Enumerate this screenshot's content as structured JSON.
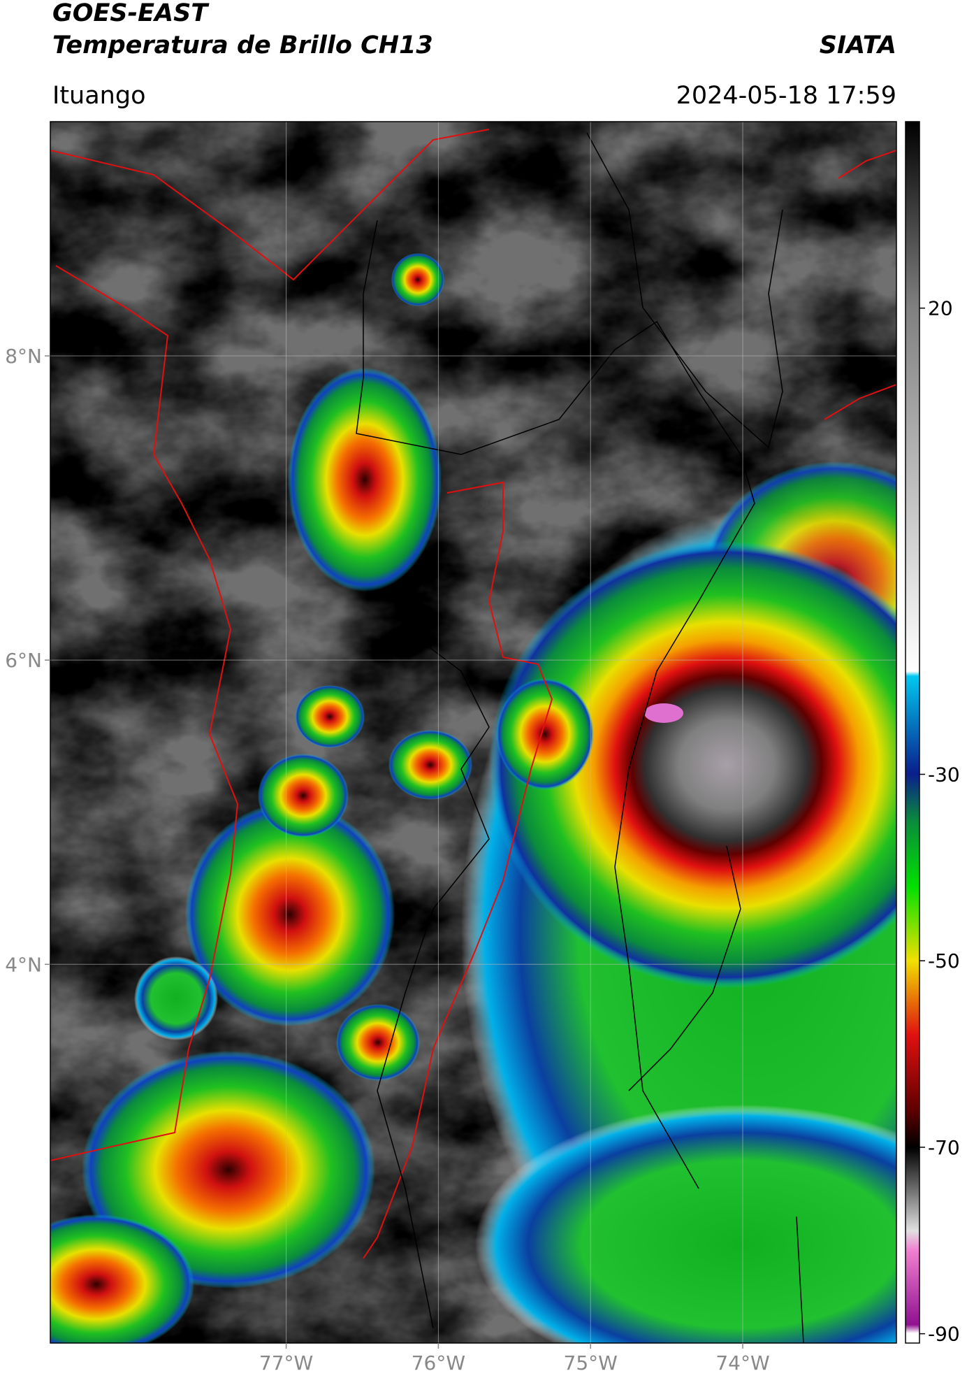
{
  "header": {
    "title": "GOES-EAST",
    "subtitle": "Temperatura de Brillo CH13",
    "source": "SIATA",
    "location": "Ituango",
    "datetime": "2024-05-18 17:59"
  },
  "map": {
    "xlim": [
      -78.55,
      -72.99
    ],
    "ylim": [
      1.51,
      9.54
    ],
    "xticks": [
      {
        "value": -77,
        "label": "77°W"
      },
      {
        "value": -76,
        "label": "76°W"
      },
      {
        "value": -75,
        "label": "75°W"
      },
      {
        "value": -74,
        "label": "74°W"
      }
    ],
    "yticks": [
      {
        "value": 8,
        "label": "8°N"
      },
      {
        "value": 6,
        "label": "6°N"
      },
      {
        "value": 4,
        "label": "4°N"
      }
    ],
    "grid": true
  },
  "colorbar": {
    "lim": [
      -91,
      40
    ],
    "ticks": [
      20,
      -30,
      -50,
      -70,
      -90
    ]
  }
}
